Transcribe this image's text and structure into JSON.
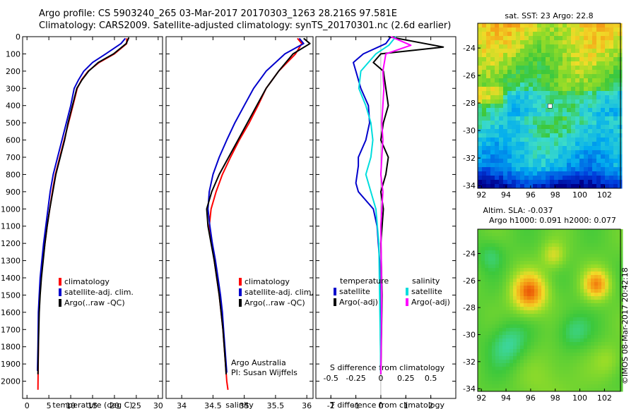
{
  "header": {
    "line1": "Argo profile: CS 5903240_265 03-Mar-2017 20170303_1263 28.216S 97.581E",
    "line2": "Climatology: CARS2009. Satellite-adjusted climatology: synTS_20170301.nc (2.6d earlier)"
  },
  "colors": {
    "climatology": "#ff0000",
    "satellite": "#0000cc",
    "argo": "#000000",
    "sat_salinity": "#00dddd",
    "argo_salinity": "#ff00ff"
  },
  "chart_data": [
    {
      "id": "temperature",
      "type": "line",
      "xlabel": "temperature (deg C)",
      "ylabel": "",
      "xlim": [
        -1,
        31
      ],
      "ylim": [
        0,
        2100
      ],
      "y_inverted": true,
      "xticks": [
        0,
        5,
        10,
        15,
        20,
        25,
        30
      ],
      "xticklabels": [
        "0",
        "5",
        "10",
        "15",
        "20",
        "25",
        "30"
      ],
      "yticks": [
        0,
        100,
        200,
        300,
        400,
        500,
        600,
        700,
        800,
        900,
        1000,
        1100,
        1200,
        1300,
        1400,
        1500,
        1600,
        1700,
        1800,
        1900,
        2000
      ],
      "yticklabels": [
        "0",
        "100",
        "200",
        "300",
        "400",
        "500",
        "600",
        "700",
        "800",
        "900",
        "1000",
        "1100",
        "1200",
        "1300",
        "1400",
        "1500",
        "1600",
        "1700",
        "1800",
        "1900",
        "2000"
      ],
      "legend": [
        "climatology",
        "satellite-adj. clim.",
        "Argo(..raw -QC)"
      ],
      "legend_position": "center-left",
      "series": [
        {
          "name": "climatology",
          "color": "#ff0000",
          "x": [
            22.8,
            22.8,
            20,
            16.5,
            14,
            12.5,
            11.5,
            10.5,
            9.5,
            8.5,
            7.5,
            6.5,
            5.8,
            5.2,
            4.6,
            4.1,
            3.6,
            3.2,
            2.9,
            2.7,
            2.6,
            2.5
          ],
          "y": [
            10,
            40,
            100,
            150,
            200,
            250,
            300,
            400,
            500,
            600,
            700,
            800,
            900,
            1000,
            1100,
            1200,
            1300,
            1400,
            1500,
            1600,
            1800,
            2050
          ]
        },
        {
          "name": "satellite-adj. clim.",
          "color": "#0000cc",
          "x": [
            22.5,
            21.5,
            18,
            15,
            13,
            11.8,
            10.8,
            10,
            9,
            8,
            7,
            6,
            5.3,
            4.8,
            4.3,
            3.8,
            3.4,
            3,
            2.8,
            2.6,
            2.5,
            2.4
          ],
          "y": [
            10,
            40,
            100,
            150,
            200,
            250,
            300,
            400,
            500,
            600,
            700,
            800,
            900,
            1000,
            1100,
            1200,
            1300,
            1400,
            1500,
            1600,
            1800,
            1940
          ]
        },
        {
          "name": "Argo(..raw -QC)",
          "color": "#000000",
          "x": [
            23.3,
            22.7,
            19.8,
            16.3,
            14.1,
            12.6,
            11.4,
            10.4,
            9.4,
            8.6,
            7.6,
            6.6,
            5.9,
            5.2,
            4.6,
            4.1,
            3.7,
            3.3,
            3,
            2.8,
            2.6,
            2.5
          ],
          "y": [
            5,
            40,
            100,
            150,
            200,
            250,
            300,
            400,
            500,
            600,
            700,
            800,
            900,
            1000,
            1100,
            1200,
            1300,
            1400,
            1500,
            1600,
            1800,
            1960
          ]
        }
      ]
    },
    {
      "id": "salinity",
      "type": "line",
      "xlabel": "salinity",
      "ylabel": "",
      "xlim": [
        33.75,
        36.1
      ],
      "ylim": [
        0,
        2100
      ],
      "y_inverted": true,
      "xticks": [
        34,
        34.5,
        35,
        35.5,
        36
      ],
      "xticklabels": [
        "34",
        "34.5",
        "35",
        "35.5",
        "36"
      ],
      "legend": [
        "climatology",
        "satellite-adj. clim.",
        "Argo(..raw -QC)"
      ],
      "legend_position": "center-right",
      "annotations": [
        "Argo Australia",
        "PI: Susan Wijffels"
      ],
      "series": [
        {
          "name": "climatology",
          "color": "#ff0000",
          "x": [
            35.85,
            35.92,
            35.82,
            35.55,
            35.35,
            35.22,
            35.08,
            34.92,
            34.78,
            34.65,
            34.55,
            34.47,
            34.44,
            34.48,
            34.52,
            34.56,
            34.6,
            34.63,
            34.66,
            34.68,
            34.7,
            34.72,
            34.74
          ],
          "y": [
            10,
            40,
            100,
            200,
            300,
            400,
            500,
            600,
            700,
            800,
            900,
            1000,
            1100,
            1200,
            1300,
            1400,
            1500,
            1600,
            1700,
            1800,
            1900,
            2000,
            2050
          ]
        },
        {
          "name": "satellite-adj. clim.",
          "color": "#0000cc",
          "x": [
            35.88,
            35.95,
            35.65,
            35.35,
            35.15,
            35.0,
            34.85,
            34.72,
            34.6,
            34.5,
            34.44,
            34.42,
            34.45,
            34.49,
            34.54,
            34.58,
            34.62,
            34.65,
            34.67,
            34.69,
            34.71,
            34.72
          ],
          "y": [
            10,
            40,
            100,
            200,
            300,
            400,
            500,
            600,
            700,
            800,
            900,
            1000,
            1100,
            1200,
            1300,
            1400,
            1500,
            1600,
            1700,
            1800,
            1900,
            1950
          ]
        },
        {
          "name": "Argo(..raw -QC)",
          "color": "#000000",
          "x": [
            35.95,
            36.05,
            35.78,
            35.55,
            35.35,
            35.2,
            35.05,
            34.9,
            34.75,
            34.6,
            34.48,
            34.4,
            34.42,
            34.47,
            34.52,
            34.56,
            34.6,
            34.63,
            34.66,
            34.68,
            34.7,
            34.71
          ],
          "y": [
            10,
            40,
            100,
            200,
            300,
            400,
            500,
            600,
            700,
            800,
            900,
            1000,
            1100,
            1200,
            1300,
            1400,
            1500,
            1600,
            1700,
            1800,
            1900,
            1960
          ]
        }
      ]
    },
    {
      "id": "difference",
      "type": "line",
      "xlabel": "T difference from climatology",
      "top_axis_label": "S difference from climatology",
      "ylabel": "",
      "xlim": [
        -2.6,
        3.0
      ],
      "ylim": [
        0,
        2100
      ],
      "y_inverted": true,
      "xticks": [
        -2,
        -1,
        0,
        1,
        2
      ],
      "xticklabels": [
        "-2",
        "-1",
        "0",
        "1",
        "2"
      ],
      "s_xlim": [
        -0.65,
        0.75
      ],
      "s_xticks": [
        -0.5,
        -0.25,
        0,
        0.25,
        0.5
      ],
      "s_xticklabels": [
        "-0.5",
        "-0.25",
        "0",
        "0.25",
        "0.5"
      ],
      "legend_groups": [
        {
          "title": "temperature",
          "items": [
            "satellite",
            "Argo(-adj)"
          ]
        },
        {
          "title": "salinity",
          "items": [
            "satellite",
            "Argo(-adj)"
          ]
        }
      ],
      "legend_position": "center",
      "series": [
        {
          "name": "temperature satellite",
          "color": "#0000cc",
          "axis": "T",
          "x": [
            0.4,
            0.2,
            -0.7,
            -1.1,
            -1.0,
            -0.8,
            -0.5,
            -0.45,
            -0.6,
            -0.9,
            -0.9,
            -1.0,
            -0.9,
            -0.6,
            -0.3,
            -0.15,
            -0.05,
            0
          ],
          "y": [
            0,
            40,
            100,
            150,
            200,
            300,
            400,
            500,
            600,
            700,
            750,
            850,
            900,
            950,
            1000,
            1100,
            1300,
            1950
          ]
        },
        {
          "name": "temperature Argo(-adj)",
          "color": "#000000",
          "axis": "T",
          "x": [
            0.3,
            2.5,
            0,
            -0.3,
            0.1,
            0.2,
            0.3,
            0.1,
            0.0,
            0.3,
            0.2,
            0.0,
            0.1,
            0,
            0.05,
            0
          ],
          "y": [
            0,
            60,
            100,
            150,
            200,
            300,
            400,
            500,
            600,
            700,
            800,
            900,
            1000,
            1200,
            1500,
            1960
          ]
        },
        {
          "name": "salinity satellite",
          "color": "#00dddd",
          "axis": "S",
          "x": [
            0.15,
            0.08,
            -0.05,
            -0.2,
            -0.22,
            -0.15,
            -0.1,
            -0.08,
            -0.1,
            -0.15,
            -0.1,
            -0.05,
            -0.02,
            0
          ],
          "y": [
            0,
            50,
            100,
            200,
            300,
            400,
            500,
            600,
            700,
            800,
            900,
            1000,
            1200,
            1950
          ]
        },
        {
          "name": "salinity Argo(-adj)",
          "color": "#ff00ff",
          "axis": "S",
          "x": [
            0.1,
            0.3,
            0.05,
            0.02,
            0.03,
            0.02,
            0.01,
            0.02,
            0.01,
            0.0,
            0.02,
            0.0,
            0.01,
            0
          ],
          "y": [
            0,
            50,
            100,
            200,
            300,
            400,
            500,
            600,
            700,
            800,
            900,
            1100,
            1500,
            1960
          ]
        }
      ]
    },
    {
      "id": "sst_map",
      "type": "heatmap",
      "title": "sat. SST: 23 Argo: 22.8",
      "xlim": [
        91.7,
        103.3
      ],
      "ylim": [
        -34.2,
        -22.2
      ],
      "xticks": [
        92,
        94,
        96,
        98,
        100,
        102
      ],
      "xticklabels": [
        "92",
        "94",
        "96",
        "98",
        "100",
        "102"
      ],
      "yticks": [
        -24,
        -26,
        -28,
        -30,
        -32,
        -34
      ],
      "yticklabels": [
        "-24",
        "-26",
        "-28",
        "-30",
        "-32",
        "-34"
      ],
      "marker": {
        "lon": 97.581,
        "lat": -28.216
      }
    },
    {
      "id": "sla_map",
      "type": "heatmap",
      "title": "Altim. SLA: -0.037",
      "subtitle": "Argo h1000: 0.091 h2000: 0.077",
      "xlim": [
        91.7,
        103.3
      ],
      "ylim": [
        -34.2,
        -22.2
      ],
      "xticks": [
        92,
        94,
        96,
        98,
        100,
        102
      ],
      "xticklabels": [
        "92",
        "94",
        "96",
        "98",
        "100",
        "102"
      ],
      "yticks": [
        -24,
        -26,
        -28,
        -30,
        -32,
        -34
      ],
      "yticklabels": [
        "-24",
        "-26",
        "-28",
        "-30",
        "-32",
        "-34"
      ]
    }
  ],
  "footer": {
    "credit": "©IMOS 08-Mar-2017 20:42:18"
  }
}
